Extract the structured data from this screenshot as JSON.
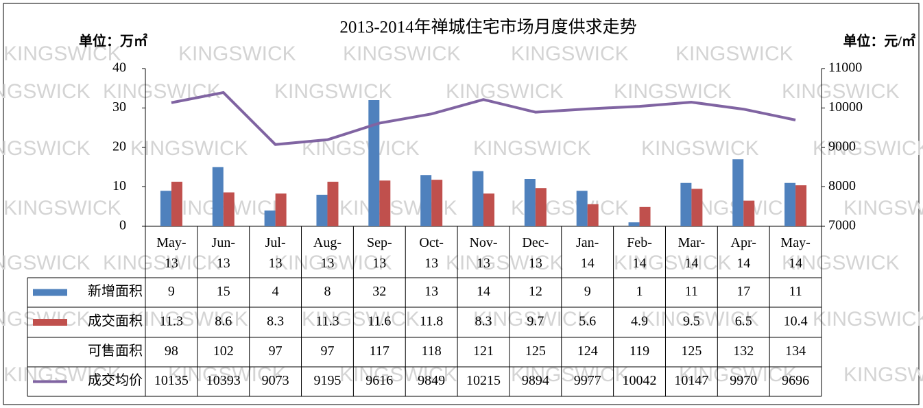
{
  "chart_data": {
    "type": "bar",
    "title": "2013-2014年禅城住宅市场月度供求走势",
    "y_label": "单位：万㎡",
    "y2_label": "单位：元/㎡",
    "watermark": "KINGSWICK",
    "categories": [
      "May-13",
      "Jun-13",
      "Jul-13",
      "Aug-13",
      "Sep-13",
      "Oct-13",
      "Nov-13",
      "Dec-13",
      "Jan-14",
      "Feb-14",
      "Mar-14",
      "Apr-14",
      "May-14"
    ],
    "series": [
      {
        "name": "新增面积",
        "type": "bar",
        "color": "#4f81bd",
        "values": [
          9,
          15,
          4,
          8,
          32,
          13,
          14,
          12,
          9,
          1,
          11,
          17,
          11
        ]
      },
      {
        "name": "成交面积",
        "type": "bar",
        "color": "#c0504d",
        "values": [
          11.3,
          8.6,
          8.3,
          11.3,
          11.6,
          11.8,
          8.3,
          9.7,
          5.6,
          4.9,
          9.5,
          6.5,
          10.4
        ]
      },
      {
        "name": "可售面积",
        "type": "table",
        "values": [
          98,
          102,
          97,
          97,
          117,
          118,
          121,
          125,
          124,
          119,
          125,
          132,
          134
        ]
      },
      {
        "name": "成交均价",
        "type": "line",
        "axis": "y2",
        "color": "#8064a2",
        "values": [
          10135,
          10393,
          9073,
          9195,
          9616,
          9849,
          10215,
          9894,
          9977,
          10042,
          10147,
          9970,
          9696
        ]
      }
    ],
    "ylim": [
      0,
      40
    ],
    "yticks": [
      0,
      10,
      20,
      30,
      40
    ],
    "y2lim": [
      7000,
      11000
    ],
    "y2ticks": [
      7000,
      8000,
      9000,
      10000,
      11000
    ],
    "grid": false
  }
}
